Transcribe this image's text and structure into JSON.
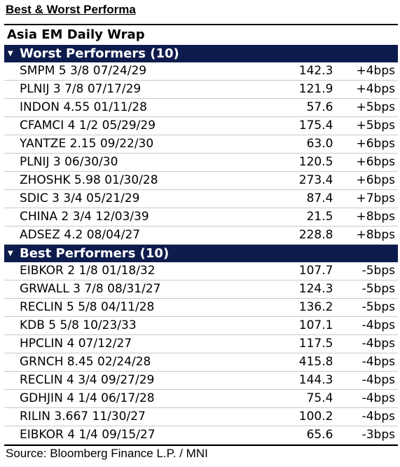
{
  "title": "Best & Worst Performa",
  "wrap_title": "Asia EM Daily Wrap",
  "worst": {
    "header": "Worst Performers (10)",
    "rows": [
      {
        "name": "SMPM 5 3/8 07/24/29",
        "value": "142.3",
        "change": "+4bps"
      },
      {
        "name": "PLNIJ 3 7/8 07/17/29",
        "value": "121.9",
        "change": "+4bps"
      },
      {
        "name": "INDON 4.55 01/11/28",
        "value": "57.6",
        "change": "+5bps"
      },
      {
        "name": "CFAMCI 4 1/2 05/29/29",
        "value": "175.4",
        "change": "+5bps"
      },
      {
        "name": "YANTZE 2.15 09/22/30",
        "value": "63.0",
        "change": "+6bps"
      },
      {
        "name": "PLNIJ 3 06/30/30",
        "value": "120.5",
        "change": "+6bps"
      },
      {
        "name": "ZHOSHK 5.98 01/30/28",
        "value": "273.4",
        "change": "+6bps"
      },
      {
        "name": "SDIC 3 3/4 05/21/29",
        "value": "87.4",
        "change": "+7bps"
      },
      {
        "name": "CHINA 2 3/4 12/03/39",
        "value": "21.5",
        "change": "+8bps"
      },
      {
        "name": "ADSEZ 4.2 08/04/27",
        "value": "228.8",
        "change": "+8bps"
      }
    ]
  },
  "best": {
    "header": "Best Performers (10)",
    "rows": [
      {
        "name": "EIBKOR 2 1/8 01/18/32",
        "value": "107.7",
        "change": "-5bps"
      },
      {
        "name": "GRWALL 3 7/8 08/31/27",
        "value": "124.3",
        "change": "-5bps"
      },
      {
        "name": "RECLIN 5 5/8 04/11/28",
        "value": "136.2",
        "change": "-5bps"
      },
      {
        "name": "KDB 5 5/8 10/23/33",
        "value": "107.1",
        "change": "-4bps"
      },
      {
        "name": "HPCLIN 4 07/12/27",
        "value": "117.5",
        "change": "-4bps"
      },
      {
        "name": "GRNCH 8.45 02/24/28",
        "value": "415.8",
        "change": "-4bps"
      },
      {
        "name": "RECLIN 4 3/4 09/27/29",
        "value": "144.3",
        "change": "-4bps"
      },
      {
        "name": "GDHJIN 4 1/4 06/17/28",
        "value": "75.4",
        "change": "-4bps"
      },
      {
        "name": "RILIN 3.667 11/30/27",
        "value": "100.2",
        "change": "-4bps"
      },
      {
        "name": "EIBKOR 4 1/4 09/15/27",
        "value": "65.6",
        "change": "-3bps"
      }
    ]
  },
  "source": "Source: Bloomberg Finance L.P. / MNI",
  "colors": {
    "header_bg": "#0e1c4d",
    "header_text": "#ffffff"
  },
  "icons": {
    "section_toggle": "triangle-down-icon"
  }
}
